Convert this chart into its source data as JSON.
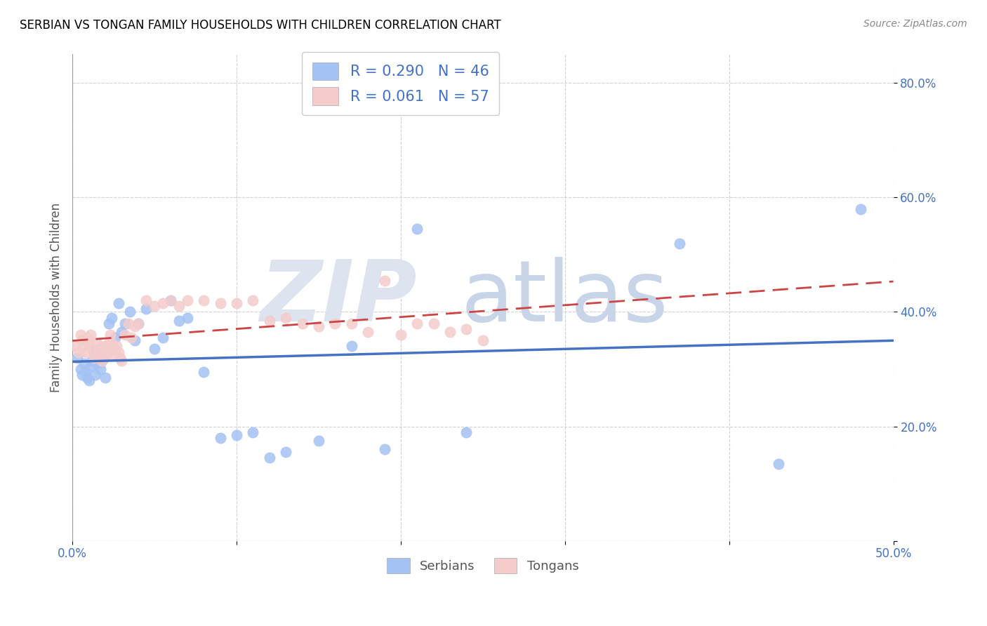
{
  "title": "SERBIAN VS TONGAN FAMILY HOUSEHOLDS WITH CHILDREN CORRELATION CHART",
  "source": "Source: ZipAtlas.com",
  "ylabel": "Family Households with Children",
  "xlim": [
    0.0,
    0.5
  ],
  "ylim": [
    0.0,
    0.85
  ],
  "xticks": [
    0.0,
    0.1,
    0.2,
    0.3,
    0.4,
    0.5
  ],
  "yticks": [
    0.0,
    0.2,
    0.4,
    0.6,
    0.8
  ],
  "xticklabels": [
    "0.0%",
    "",
    "",
    "",
    "",
    "50.0%"
  ],
  "yticklabels": [
    "",
    "20.0%",
    "40.0%",
    "60.0%",
    "80.0%"
  ],
  "serbian_color": "#a4c2f4",
  "tongan_color": "#f4cccc",
  "serbian_line_color": "#4472c4",
  "tongan_line_color": "#cc4444",
  "serbian_R": 0.29,
  "serbian_N": 46,
  "tongan_R": 0.061,
  "tongan_N": 57,
  "serbian_x": [
    0.003,
    0.005,
    0.006,
    0.007,
    0.008,
    0.009,
    0.01,
    0.011,
    0.012,
    0.013,
    0.014,
    0.015,
    0.016,
    0.017,
    0.018,
    0.019,
    0.02,
    0.022,
    0.024,
    0.026,
    0.028,
    0.03,
    0.032,
    0.035,
    0.038,
    0.04,
    0.045,
    0.05,
    0.055,
    0.06,
    0.065,
    0.07,
    0.08,
    0.09,
    0.1,
    0.11,
    0.12,
    0.13,
    0.15,
    0.17,
    0.19,
    0.21,
    0.24,
    0.37,
    0.43,
    0.48
  ],
  "serbian_y": [
    0.32,
    0.3,
    0.29,
    0.31,
    0.295,
    0.285,
    0.28,
    0.305,
    0.315,
    0.33,
    0.29,
    0.31,
    0.325,
    0.3,
    0.315,
    0.32,
    0.285,
    0.38,
    0.39,
    0.355,
    0.415,
    0.365,
    0.38,
    0.4,
    0.35,
    0.38,
    0.405,
    0.335,
    0.355,
    0.42,
    0.385,
    0.39,
    0.295,
    0.18,
    0.185,
    0.19,
    0.145,
    0.155,
    0.175,
    0.34,
    0.16,
    0.545,
    0.19,
    0.52,
    0.135,
    0.58
  ],
  "tongan_x": [
    0.002,
    0.004,
    0.005,
    0.006,
    0.007,
    0.008,
    0.009,
    0.01,
    0.011,
    0.012,
    0.013,
    0.014,
    0.015,
    0.016,
    0.017,
    0.018,
    0.019,
    0.02,
    0.021,
    0.022,
    0.023,
    0.024,
    0.025,
    0.026,
    0.027,
    0.028,
    0.029,
    0.03,
    0.032,
    0.034,
    0.036,
    0.038,
    0.04,
    0.045,
    0.05,
    0.055,
    0.06,
    0.065,
    0.07,
    0.08,
    0.09,
    0.1,
    0.11,
    0.12,
    0.13,
    0.14,
    0.15,
    0.16,
    0.17,
    0.18,
    0.19,
    0.2,
    0.21,
    0.22,
    0.23,
    0.24,
    0.25
  ],
  "tongan_y": [
    0.34,
    0.33,
    0.36,
    0.35,
    0.34,
    0.33,
    0.355,
    0.345,
    0.36,
    0.335,
    0.32,
    0.325,
    0.345,
    0.335,
    0.325,
    0.315,
    0.34,
    0.33,
    0.325,
    0.345,
    0.36,
    0.345,
    0.335,
    0.325,
    0.34,
    0.33,
    0.32,
    0.315,
    0.36,
    0.38,
    0.355,
    0.375,
    0.38,
    0.42,
    0.41,
    0.415,
    0.42,
    0.41,
    0.42,
    0.42,
    0.415,
    0.415,
    0.42,
    0.385,
    0.39,
    0.38,
    0.375,
    0.38,
    0.38,
    0.365,
    0.455,
    0.36,
    0.38,
    0.38,
    0.365,
    0.37,
    0.35
  ]
}
